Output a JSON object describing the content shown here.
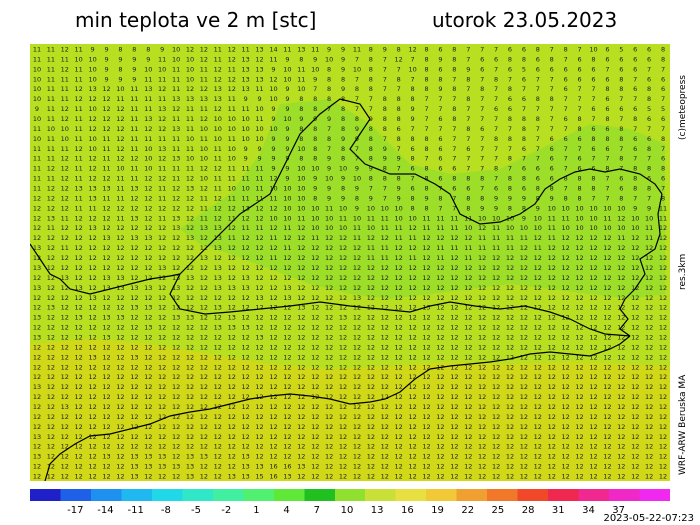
{
  "header": {
    "title_left": "min teplota ve 2 m [stc]",
    "title_right": "utorok 23.05.2023"
  },
  "side_labels": {
    "copyright": "(c)meteopress",
    "resolution": "res.3km",
    "model": "WRF-ARW Beruska MA"
  },
  "footer": {
    "timestamp": "2023-05-22-07:23"
  },
  "legend": {
    "ticks": [
      "-17",
      "-14",
      "-11",
      "-8",
      "-5",
      "-2",
      "1",
      "4",
      "7",
      "10",
      "13",
      "16",
      "19",
      "22",
      "25",
      "28",
      "31",
      "34",
      "37"
    ],
    "colors": [
      "#2020c8",
      "#1e60e8",
      "#1e90f0",
      "#20b8f0",
      "#20d8e8",
      "#30e8c8",
      "#40f0a0",
      "#50f070",
      "#60e838",
      "#20c020",
      "#90e030",
      "#c8e038",
      "#e8e040",
      "#f0c838",
      "#f0a030",
      "#f07828",
      "#f04828",
      "#f02850",
      "#f02890",
      "#f028c8",
      "#f028f0"
    ]
  },
  "map": {
    "colors": {
      "background": "#b8e020",
      "warm": "#d0d818",
      "cool": "#9cde28",
      "numbers": "#202020",
      "border": "#000000"
    },
    "grid_values": [
      "11 11 12 11 9 9 8 8 8 9 10 12 12 11 12 11 13 14 11 13 11 9 9 11 8 9 8 12 8 6 8 7 7 7 6 6 8 7 8 7 10 6 5 6 6 8",
      "11 11 11 10 10 9 9 9 9 11 10 10 12 11 12 13 12 11 9 8 9 10 9 7 8 7 12 7 8 9 8 7 6 6 8 8 6 8 7 6 8 6 6 6 6 8",
      "10 11 12 11 10 9 8 9 10 10 11 10 11 12 11 13 13 9 10 11 10 8 9 10 8 7 7 10 8 6 8 9 6 7 6 5 6 6 6 6 6 7 6 6 7 7",
      "10 11 11 11 10 9 9 9 11 11 11 10 11 12 12 13 13 12 10 11 9 8 8 7 8 7 8 7 8 8 7 8 7 8 7 6 7 7 6 6 6 6 8 7 6 6",
      "10 11 11 12 13 12 10 11 13 12 11 12 12 13 12 13 11 10 9 10 7 8 9 8 8 7 7 8 8 9 8 7 8 7 8 7 7 7 6 7 7 8 8 6 8 6",
      "10 11 11 12 12 12 11 11 11 11 13 13 13 13 11 9 9 10 9 8 8 8 8 7 7 8 8 8 7 7 7 8 7 7 6 6 8 8 7 7 7 6 7 7 8 7",
      "9 11 12 11 10 12 12 11 11 13 12 11 11 12 11 11 10 9 9 8 8 7 8 7 7 8 8 9 7 7 8 7 7 6 6 7 7 7 7 7 6 6 6 6 5 5",
      "10 11 12 11 12 12 12 11 13 12 11 11 12 10 10 10 11 9 10 9 9 9 8 8 9 8 8 9 7 6 8 7 7 7 8 8 8 7 6 8 7 8 7 8 6 6",
      "11 10 10 11 12 12 12 11 12 12 13 11 10 10 10 10 10 10 9 8 8 7 8 9 8 8 6 7 7 7 7 8 6 7 7 8 7 7 7 8 6 6 8 7 7 7",
      "10 11 10 11 10 11 12 11 11 11 11 10 11 10 11 10 10 9 9 8 8 8 9 9 8 7 8 8 8 6 7 7 7 8 8 8 7 6 6 6 8 8 8 6 6 8",
      "11 11 11 12 10 11 12 11 10 13 11 11 10 11 10 9 9 9 9 10 8 7 8 7 8 9 7 6 8 6 7 6 7 7 7 6 7 6 7 7 6 6 7 6 8 7",
      "11 11 12 11 12 11 12 12 10 12 13 10 10 11 10 9 9 9 9 8 8 9 8 7 8 9 9 8 7 6 7 7 7 7 8 7 7 6 7 6 7 7 8 7 7 6",
      "11 12 12 11 12 11 10 11 10 11 11 11 12 12 11 11 11 9 9 10 10 9 10 9 9 8 7 6 8 6 6 7 7 8 7 6 6 6 7 6 6 8 7 8 8 8",
      "11 11 12 11 12 12 11 11 12 12 11 12 10 11 11 11 11 12 9 10 9 10 9 10 8 8 8 7 8 6 8 8 8 7 8 8 6 6 8 8 8 7 6 8 6 6",
      "11 12 12 13 13 13 11 13 12 11 12 13 12 11 10 10 11 10 10 10 9 9 8 9 7 7 9 6 8 7 6 6 7 6 8 6 8 8 7 8 8 7 6 8 8 7",
      "12 12 12 11 13 11 11 12 12 11 12 12 11 12 11 11 11 11 10 10 8 9 9 8 9 7 9 8 9 8 7 8 8 9 9 9 8 9 8 8 7 7 8 7 7 8",
      "12 12 12 11 11 12 12 12 12 12 12 12 11 12 12 13 12 12 10 10 10 11 10 9 10 10 10 8 8 7 7 8 9 9 8 8 9 10 10 10 10 10 10 9 9 11",
      "12 13 11 12 12 12 11 13 12 11 13 12 11 12 11 12 12 10 10 11 10 10 11 10 11 11 10 10 11 11 11 11 10 10 10 9 10 11 11 10 10 11 12 10 10 11",
      "12 11 12 12 13 12 12 12 12 12 13 12 13 13 12 11 11 12 11 12 10 10 10 11 10 11 11 12 11 11 11 10 12 11 10 10 10 11 10 10 10 10 10 10 11 12",
      "12 12 12 12 12 13 12 13 13 12 12 13 12 13 11 12 12 11 12 12 11 12 12 11 12 12 11 11 12 12 12 12 11 11 11 11 12 11 12 12 12 12 11 12 11 12",
      "13 12 11 12 12 12 12 12 12 12 12 12 12 13 12 12 12 12 11 12 12 12 12 12 11 11 12 12 12 11 11 11 11 11 11 12 11 12 12 12 12 12 12 12 12 12",
      "12 12 12 12 12 12 12 12 12 12 12 12 13 12 12 12 12 11 12 12 12 12 12 12 11 11 12 11 12 11 12 11 12 12 12 12 12 12 12 12 12 12 12 12 12 12",
      "13 12 12 12 12 12 12 12 12 13 12 12 12 13 12 12 12 12 12 12 12 12 12 12 12 12 12 12 12 12 12 12 12 12 12 12 12 12 12 12 12 12 12 12 12 12",
      "12 12 13 12 12 13 13 12 12 12 13 13 12 13 12 13 12 12 12 12 12 12 12 12 12 12 12 12 12 12 12 12 12 12 12 12 12 12 12 12 12 12 12 12 12 12",
      "13 12 12 13 12 13 13 13 13 12 13 12 12 13 13 13 12 12 13 12 12 12 12 12 12 12 12 12 12 12 12 12 12 12 12 12 12 12 12 12 12 12 12 12 12 12",
      "12 12 12 12 13 12 12 12 12 12 12 12 12 12 12 12 13 12 13 12 12 12 12 13 12 12 12 12 12 12 12 12 12 12 12 12 12 12 12 12 12 12 12 12 12 12",
      "12 13 12 12 12 12 12 13 13 12 12 12 12 13 12 12 12 12 12 13 12 12 12 12 12 12 12 12 13 12 12 12 12 12 12 12 12 12 12 12 12 12 12 12 12 12",
      "13 12 12 13 12 13 13 12 12 12 13 13 12 12 13 12 12 12 12 12 12 12 13 12 12 12 12 12 12 12 12 12 12 12 12 12 12 12 12 12 12 12 12 12 12 12",
      "12 12 12 12 12 12 12 12 13 12 12 12 12 13 13 13 12 12 12 12 12 12 12 12 12 12 12 12 12 12 12 12 12 12 12 12 12 12 12 12 12 12 12 12 12 12",
      "13 12 12 12 12 13 12 12 12 12 12 12 12 12 12 12 13 12 12 12 12 12 12 12 12 12 12 12 12 12 12 12 12 12 12 12 12 12 12 12 12 12 12 12 12 12",
      "12 12 12 12 12 12 12 12 12 12 12 12 12 12 12 12 12 12 12 12 12 12 12 12 12 12 12 12 12 12 12 12 12 12 12 12 12 12 12 12 12 12 12 12 12 12",
      "12 12 12 12 13 12 12 13 12 12 12 12 12 12 12 12 12 12 12 12 12 12 12 12 12 12 12 12 12 12 12 12 12 12 12 12 12 12 12 12 12 12 12 12 12 12",
      "12 12 12 12 12 12 12 12 12 12 12 12 12 12 12 12 12 12 12 12 12 12 12 12 12 12 12 12 12 12 12 12 12 12 12 12 12 12 12 12 12 12 12 12 12 12",
      "12 12 12 12 12 12 12 12 12 12 12 12 12 12 12 12 12 12 12 12 12 12 12 12 12 12 12 12 12 12 12 12 12 12 12 12 12 12 12 12 12 12 12 12 12 12",
      "13 12 12 12 12 12 12 12 12 12 12 12 12 12 12 12 12 12 12 12 12 12 12 12 12 12 12 12 12 12 12 12 12 12 12 12 12 12 12 12 12 12 12 12 12 12",
      "12 12 12 12 12 12 12 12 12 12 12 12 12 12 12 12 12 12 12 12 12 12 12 12 12 12 12 12 12 12 12 12 12 12 12 12 12 12 12 12 12 12 12 12 12 12",
      "12 12 13 12 12 12 12 12 12 12 12 12 12 12 12 12 12 12 12 12 12 12 12 12 12 12 12 12 12 12 12 12 12 12 12 12 12 12 12 12 12 12 12 12 12 12",
      "12 12 12 12 12 12 12 12 12 12 12 12 12 12 12 12 12 12 12 12 12 12 12 12 12 12 12 12 12 12 12 12 12 12 12 12 12 12 12 12 12 12 12 12 12 12",
      "12 12 12 12 12 12 12 12 12 12 12 12 12 12 12 12 12 12 12 12 12 12 12 12 12 12 12 12 12 12 12 12 12 12 12 12 12 12 12 12 12 12 12 12 12 12",
      "13 12 12 12 12 12 12 12 12 12 12 12 12 12 12 12 12 12 12 12 12 12 12 12 12 12 12 12 12 12 12 12 12 12 12 12 12 12 12 12 12 12 12 12 12 12",
      "12 12 12 12 12 12 12 12 12 12 12 12 12 12 12 12 12 12 12 12 12 12 12 12 12 12 12 12 12 12 12 12 12 12 12 12 12 12 12 12 12 12 12 12 12 12",
      "13 12 12 12 12 13 12 13 13 13 12 13 13 12 12 13 12 12 12 12 12 12 12 12 12 12 12 12 12 12 12 12 12 12 12 12 12 12 12 12 12 12 12 12 12 12",
      "12 12 12 12 12 12 12 13 13 13 13 13 12 12 12 13 13 16 16 13 12 12 12 12 12 12 12 12 12 12 12 12 12 12 12 12 12 12 12 12 12 12 12 12 12 12",
      "12 12 12 12 12 12 12 13 12 12 12 13 12 12 13 13 15 16 13 12 12 12 12 12 12 12 12 12 12 12 12 12 12 12 12 12 12 12 12 12 12 12 12 12 12 12"
    ]
  }
}
